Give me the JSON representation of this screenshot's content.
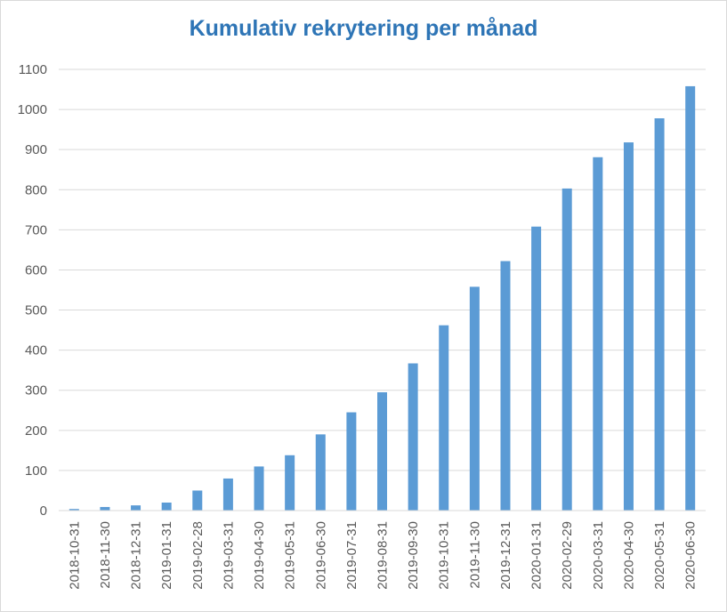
{
  "chart_data": {
    "type": "bar",
    "title": "Kumulativ rekrytering per månad",
    "categories": [
      "2018-10-31",
      "2018-11-30",
      "2018-12-31",
      "2019-01-31",
      "2019-02-28",
      "2019-03-31",
      "2019-04-30",
      "2019-05-31",
      "2019-06-30",
      "2019-07-31",
      "2019-08-31",
      "2019-09-30",
      "2019-10-31",
      "2019-11-30",
      "2019-12-31",
      "2020-01-31",
      "2020-02-29",
      "2020-03-31",
      "2020-04-30",
      "2020-05-31",
      "2020-06-30"
    ],
    "values": [
      4,
      9,
      13,
      20,
      50,
      80,
      110,
      138,
      190,
      245,
      295,
      367,
      462,
      558,
      622,
      708,
      803,
      881,
      918,
      978,
      1058
    ],
    "ylim": [
      0,
      1100
    ],
    "yticks": [
      0,
      100,
      200,
      300,
      400,
      500,
      600,
      700,
      800,
      900,
      1000,
      1100
    ],
    "xlabel": "",
    "ylabel": "",
    "grid": true,
    "colors": {
      "bar": "#5b9bd5",
      "grid": "#d9d9d9",
      "title": "#2e75b6",
      "axis_text": "#595959"
    }
  }
}
